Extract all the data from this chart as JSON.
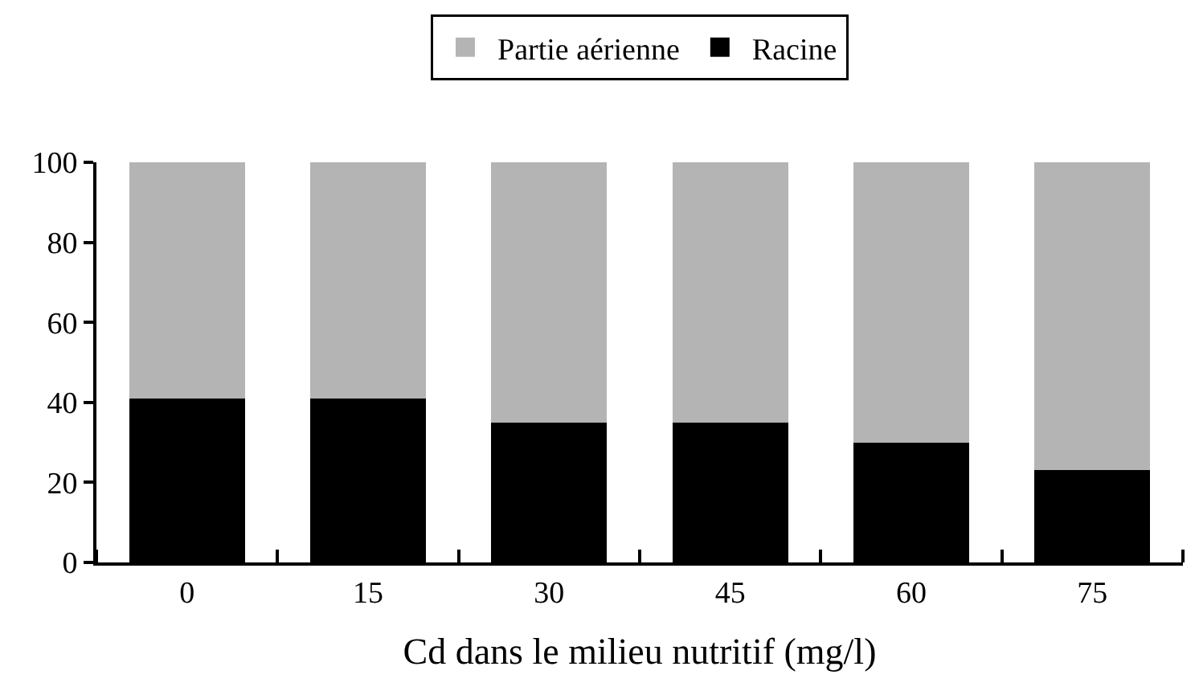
{
  "chart_data": {
    "type": "bar",
    "stacked": true,
    "xlabel": "Cd dans le milieu nutritif (mg/l)",
    "categories": [
      "0",
      "15",
      "30",
      "45",
      "60",
      "75"
    ],
    "series": [
      {
        "name": "Racine",
        "color": "#000000",
        "values": [
          41,
          41,
          35,
          35,
          30,
          23
        ]
      },
      {
        "name": "Partie aérienne",
        "color": "#b4b4b4",
        "values": [
          59,
          59,
          65,
          65,
          70,
          77
        ]
      }
    ],
    "ylim": [
      0,
      100
    ],
    "yticks": [
      0,
      20,
      40,
      60,
      80,
      100
    ],
    "grid": false,
    "legend": "top"
  }
}
